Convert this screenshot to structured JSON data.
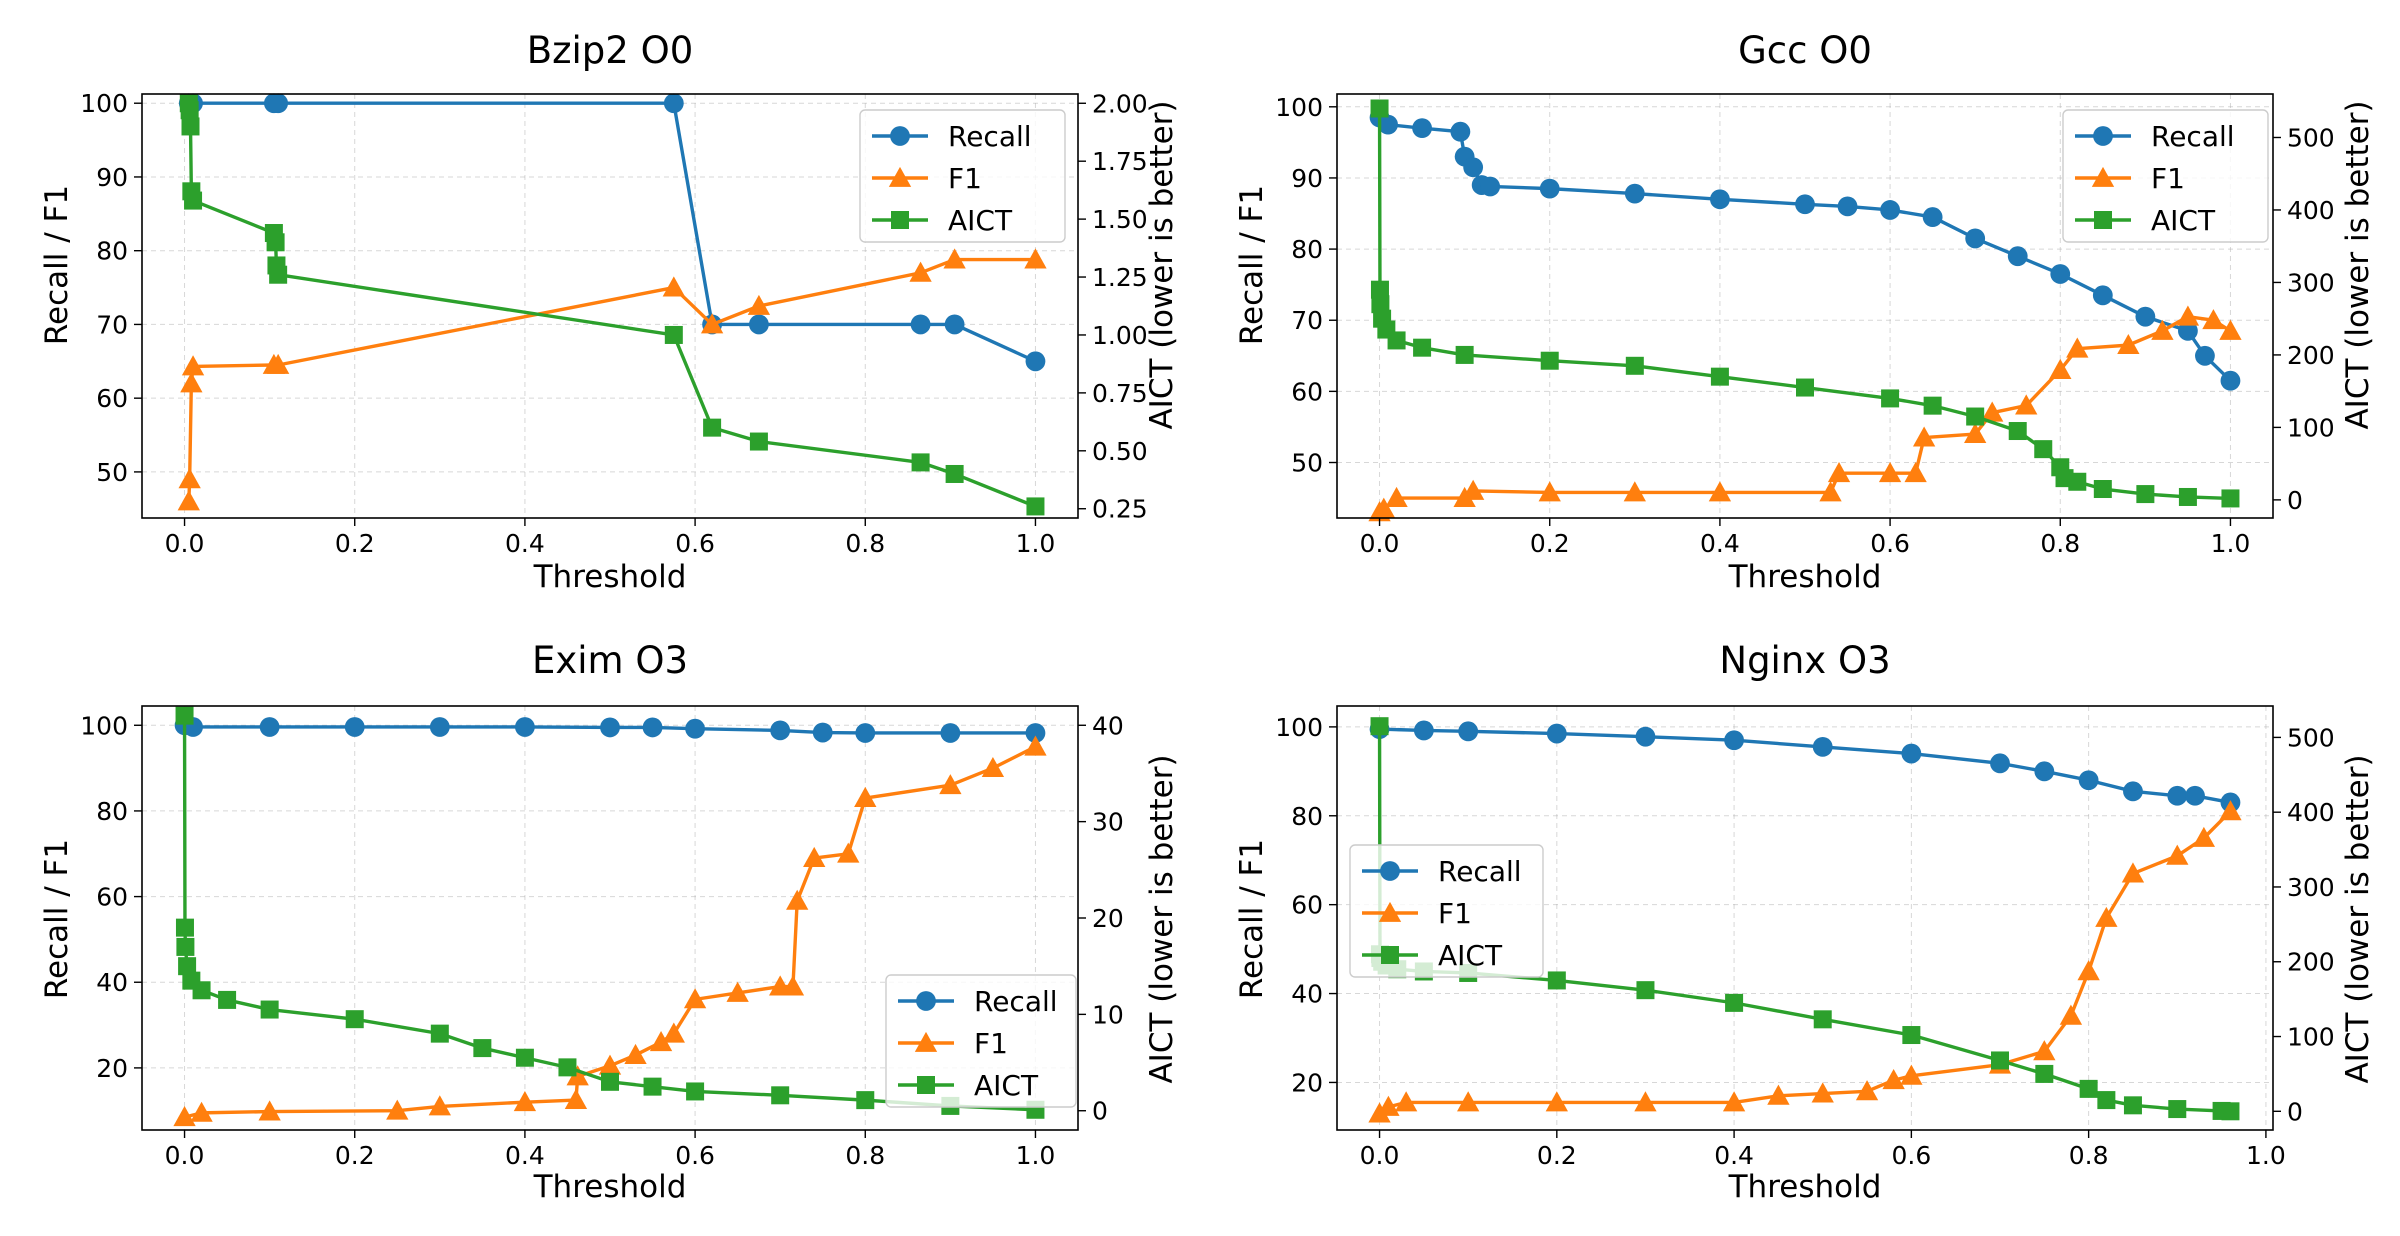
{
  "figure": {
    "colors": {
      "recall": "#1f77b4",
      "f1": "#ff7f0e",
      "aict": "#2ca02c"
    }
  },
  "chart_data": [
    {
      "type": "line",
      "title": "Bzip2 O0",
      "xlabel": "Threshold",
      "ylabel": "Recall / F1",
      "y2label": "AICT (lower is better)",
      "xlim": [
        -0.05,
        1.05
      ],
      "ylim": [
        43.75,
        101.25
      ],
      "y2lim": [
        0.21,
        2.04
      ],
      "xticks": [
        0.0,
        0.2,
        0.4,
        0.6,
        0.8,
        1.0
      ],
      "yticks": [
        50,
        60,
        70,
        80,
        90,
        100
      ],
      "y2ticks": [
        0.25,
        0.5,
        0.75,
        1.0,
        1.25,
        1.5,
        1.75,
        2.0
      ],
      "xtick_labels": [
        "0.0",
        "0.2",
        "0.4",
        "0.6",
        "0.8",
        "1.0"
      ],
      "ytick_labels": [
        "50",
        "60",
        "70",
        "80",
        "90",
        "100"
      ],
      "y2tick_labels": [
        "0.25",
        "0.50",
        "0.75",
        "1.00",
        "1.25",
        "1.50",
        "1.75",
        "2.00"
      ],
      "legend_location": "upper-right",
      "series": [
        {
          "name": "Recall",
          "axis": "left",
          "marker": "circle",
          "x": [
            0.005,
            0.01,
            0.105,
            0.11,
            0.575,
            0.62,
            0.675,
            0.865,
            0.905,
            1.0
          ],
          "y": [
            100,
            100,
            100,
            100,
            100,
            70,
            70,
            70,
            70,
            65
          ]
        },
        {
          "name": "F1",
          "axis": "left",
          "marker": "triangle",
          "x": [
            0.005,
            0.006,
            0.008,
            0.01,
            0.105,
            0.11,
            0.575,
            0.62,
            0.675,
            0.865,
            0.905,
            1.0
          ],
          "y": [
            46,
            49,
            62,
            64.3,
            64.5,
            64.5,
            75,
            70,
            72.5,
            77,
            78.8,
            78.8
          ]
        },
        {
          "name": "AICT",
          "axis": "right",
          "marker": "square",
          "x": [
            0.005,
            0.006,
            0.007,
            0.008,
            0.01,
            0.105,
            0.107,
            0.108,
            0.11,
            0.575,
            0.62,
            0.675,
            0.865,
            0.905,
            1.0
          ],
          "y": [
            2.0,
            1.97,
            1.9,
            1.62,
            1.58,
            1.44,
            1.4,
            1.3,
            1.26,
            1.0,
            0.6,
            0.54,
            0.45,
            0.4,
            0.26
          ]
        }
      ]
    },
    {
      "type": "line",
      "title": "Gcc O0",
      "xlabel": "Threshold",
      "ylabel": "Recall / F1",
      "y2label": "AICT (lower is better)",
      "xlim": [
        -0.05,
        1.05
      ],
      "ylim": [
        42.2,
        101.8
      ],
      "y2lim": [
        -25,
        560
      ],
      "xticks": [
        0.0,
        0.2,
        0.4,
        0.6,
        0.8,
        1.0
      ],
      "yticks": [
        50,
        60,
        70,
        80,
        90,
        100
      ],
      "y2ticks": [
        0,
        100,
        200,
        300,
        400,
        500
      ],
      "xtick_labels": [
        "0.0",
        "0.2",
        "0.4",
        "0.6",
        "0.8",
        "1.0"
      ],
      "ytick_labels": [
        "50",
        "60",
        "70",
        "80",
        "90",
        "100"
      ],
      "y2tick_labels": [
        "0",
        "100",
        "200",
        "300",
        "400",
        "500"
      ],
      "legend_location": "upper-right",
      "series": [
        {
          "name": "Recall",
          "axis": "left",
          "marker": "circle",
          "x": [
            0.0,
            0.01,
            0.05,
            0.095,
            0.1,
            0.11,
            0.12,
            0.13,
            0.2,
            0.3,
            0.4,
            0.5,
            0.55,
            0.6,
            0.65,
            0.7,
            0.75,
            0.8,
            0.85,
            0.9,
            0.95,
            0.97,
            1.0
          ],
          "y": [
            98.5,
            97.5,
            97,
            96.5,
            93,
            91.5,
            89,
            88.8,
            88.5,
            87.8,
            87,
            86.3,
            86,
            85.5,
            84.5,
            81.5,
            79,
            76.5,
            73.5,
            70.5,
            68.5,
            65,
            61.5
          ]
        },
        {
          "name": "F1",
          "axis": "left",
          "marker": "triangle",
          "x": [
            0.0,
            0.005,
            0.02,
            0.1,
            0.11,
            0.2,
            0.3,
            0.4,
            0.53,
            0.54,
            0.6,
            0.63,
            0.64,
            0.7,
            0.72,
            0.76,
            0.8,
            0.82,
            0.88,
            0.92,
            0.95,
            0.98,
            1.0
          ],
          "y": [
            43,
            43.5,
            45,
            45,
            46,
            45.8,
            45.8,
            45.8,
            45.8,
            48.5,
            48.5,
            48.5,
            53.5,
            54,
            57,
            58,
            63,
            66,
            66.5,
            68.5,
            70.5,
            70,
            68.5
          ]
        },
        {
          "name": "AICT",
          "axis": "right",
          "marker": "square",
          "x": [
            0.0,
            0.0005,
            0.001,
            0.003,
            0.008,
            0.02,
            0.05,
            0.1,
            0.2,
            0.3,
            0.4,
            0.5,
            0.6,
            0.65,
            0.7,
            0.75,
            0.78,
            0.8,
            0.805,
            0.82,
            0.85,
            0.9,
            0.95,
            1.0
          ],
          "y": [
            540,
            290,
            270,
            250,
            235,
            220,
            210,
            200,
            192,
            185,
            170,
            155,
            140,
            130,
            115,
            95,
            70,
            45,
            30,
            25,
            15,
            8,
            4,
            2
          ]
        }
      ]
    },
    {
      "type": "line",
      "title": "Exim O3",
      "xlabel": "Threshold",
      "ylabel": "Recall / F1",
      "y2label": "AICT (lower is better)",
      "xlim": [
        -0.05,
        1.05
      ],
      "ylim": [
        5.5,
        104.5
      ],
      "y2lim": [
        -2,
        42
      ],
      "xticks": [
        0.0,
        0.2,
        0.4,
        0.6,
        0.8,
        1.0
      ],
      "yticks": [
        20,
        40,
        60,
        80,
        100
      ],
      "y2ticks": [
        0,
        10,
        20,
        30,
        40
      ],
      "xtick_labels": [
        "0.0",
        "0.2",
        "0.4",
        "0.6",
        "0.8",
        "1.0"
      ],
      "ytick_labels": [
        "20",
        "40",
        "60",
        "80",
        "100"
      ],
      "y2tick_labels": [
        "0",
        "10",
        "20",
        "30",
        "40"
      ],
      "legend_location": "lower-right",
      "series": [
        {
          "name": "Recall",
          "axis": "left",
          "marker": "circle",
          "x": [
            0.0,
            0.01,
            0.1,
            0.2,
            0.3,
            0.4,
            0.5,
            0.55,
            0.6,
            0.7,
            0.75,
            0.8,
            0.9,
            1.0
          ],
          "y": [
            100,
            99.6,
            99.6,
            99.6,
            99.6,
            99.6,
            99.5,
            99.5,
            99.2,
            98.8,
            98.3,
            98.2,
            98.2,
            98.2
          ]
        },
        {
          "name": "F1",
          "axis": "left",
          "marker": "triangle",
          "x": [
            0.0,
            0.02,
            0.1,
            0.25,
            0.3,
            0.4,
            0.46,
            0.462,
            0.5,
            0.53,
            0.56,
            0.575,
            0.6,
            0.65,
            0.7,
            0.715,
            0.72,
            0.74,
            0.78,
            0.8,
            0.9,
            0.95,
            1.0
          ],
          "y": [
            8.5,
            9.5,
            9.8,
            10,
            11,
            12,
            12.5,
            18,
            20.5,
            23,
            26,
            28,
            36,
            37.5,
            39,
            39,
            59,
            69,
            70,
            83,
            86,
            90,
            95
          ]
        },
        {
          "name": "AICT",
          "axis": "right",
          "marker": "square",
          "x": [
            0.0,
            0.0005,
            0.001,
            0.003,
            0.008,
            0.02,
            0.05,
            0.1,
            0.2,
            0.3,
            0.35,
            0.4,
            0.45,
            0.5,
            0.55,
            0.6,
            0.7,
            0.8,
            0.9,
            1.0
          ],
          "y": [
            41,
            19,
            17,
            15,
            13.5,
            12.5,
            11.5,
            10.5,
            9.5,
            8,
            6.5,
            5.5,
            4.5,
            3,
            2.5,
            2,
            1.6,
            1.1,
            0.5,
            0.1
          ]
        }
      ]
    },
    {
      "type": "line",
      "title": "Nginx O3",
      "xlabel": "Threshold",
      "ylabel": "Recall / F1",
      "y2label": "AICT (lower is better)",
      "xlim": [
        -0.048,
        1.008
      ],
      "ylim": [
        9.3,
        104.7
      ],
      "y2lim": [
        -25,
        542
      ],
      "xticks": [
        0.0,
        0.2,
        0.4,
        0.6,
        0.8,
        1.0
      ],
      "yticks": [
        20,
        40,
        60,
        80,
        100
      ],
      "y2ticks": [
        0,
        100,
        200,
        300,
        400,
        500
      ],
      "xtick_labels": [
        "0.0",
        "0.2",
        "0.4",
        "0.6",
        "0.8",
        "1.0"
      ],
      "ytick_labels": [
        "20",
        "40",
        "60",
        "80",
        "100"
      ],
      "y2tick_labels": [
        "0",
        "100",
        "200",
        "300",
        "400",
        "500"
      ],
      "legend_location": "center-left",
      "series": [
        {
          "name": "Recall",
          "axis": "left",
          "marker": "circle",
          "x": [
            0.0,
            0.05,
            0.1,
            0.2,
            0.3,
            0.4,
            0.5,
            0.6,
            0.7,
            0.75,
            0.8,
            0.85,
            0.9,
            0.92,
            0.96
          ],
          "y": [
            99.5,
            99.2,
            99,
            98.5,
            97.8,
            97,
            95.5,
            94,
            91.8,
            90,
            88,
            85.5,
            84.5,
            84.5,
            83
          ]
        },
        {
          "name": "F1",
          "axis": "left",
          "marker": "triangle",
          "x": [
            0.0,
            0.01,
            0.03,
            0.1,
            0.2,
            0.3,
            0.4,
            0.45,
            0.5,
            0.55,
            0.58,
            0.6,
            0.7,
            0.75,
            0.78,
            0.8,
            0.82,
            0.85,
            0.9,
            0.93,
            0.96
          ],
          "y": [
            13,
            14.5,
            15.5,
            15.5,
            15.5,
            15.5,
            15.5,
            17,
            17.5,
            18,
            20.5,
            21.5,
            24,
            27,
            35,
            45,
            57,
            67,
            71,
            75,
            81
          ]
        },
        {
          "name": "AICT",
          "axis": "right",
          "marker": "square",
          "x": [
            0.0,
            0.0005,
            0.001,
            0.003,
            0.008,
            0.02,
            0.05,
            0.1,
            0.2,
            0.3,
            0.4,
            0.5,
            0.6,
            0.7,
            0.75,
            0.8,
            0.82,
            0.85,
            0.9,
            0.95,
            0.96
          ],
          "y": [
            515,
            210,
            205,
            200,
            195,
            190,
            187,
            185,
            175,
            162,
            145,
            123,
            102,
            68,
            50,
            30,
            15,
            8,
            3,
            0.5,
            0
          ]
        }
      ]
    }
  ]
}
